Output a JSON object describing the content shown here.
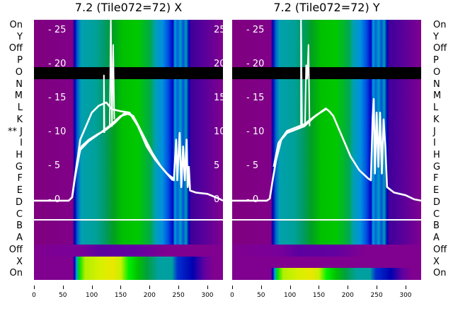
{
  "chart_data": {
    "type": "heatmap",
    "panels": [
      {
        "title": "7.2 (Tile072=72) X",
        "xlim": [
          0,
          327
        ],
        "xticks": [
          0,
          50,
          100,
          150,
          200,
          250,
          300
        ],
        "ylim_overlay": [
          -11.7,
          26.7
        ],
        "yticks_overlay": [
          0,
          5,
          10,
          15,
          20,
          25
        ],
        "row_kinds": [
          "main",
          "main",
          "main",
          "main",
          "black",
          "main",
          "main",
          "main",
          "main",
          "main",
          "main",
          "main",
          "main",
          "main",
          "main",
          "main",
          "main",
          "main",
          "main",
          "dim",
          "bright",
          "bright"
        ],
        "series": [
          {
            "name": "trace-1",
            "points": [
              [
                0,
                0
              ],
              [
                60,
                0
              ],
              [
                66,
                0.5
              ],
              [
                70,
                3
              ],
              [
                75,
                6
              ],
              [
                82,
                8
              ],
              [
                95,
                9
              ],
              [
                110,
                9.8
              ],
              [
                125,
                10.5
              ],
              [
                140,
                11.5
              ],
              [
                155,
                12.8
              ],
              [
                165,
                13
              ],
              [
                175,
                12
              ],
              [
                190,
                9.5
              ],
              [
                205,
                7
              ],
              [
                220,
                5
              ],
              [
                235,
                3.5
              ],
              [
                242,
                3
              ],
              [
                246,
                9
              ],
              [
                248,
                3
              ],
              [
                252,
                10
              ],
              [
                255,
                2
              ],
              [
                258,
                8
              ],
              [
                261,
                3
              ],
              [
                264,
                9
              ],
              [
                266,
                2
              ],
              [
                268,
                5
              ],
              [
                270,
                1.5
              ],
              [
                280,
                1.2
              ],
              [
                300,
                1
              ],
              [
                320,
                0.3
              ],
              [
                327,
                0
              ]
            ]
          },
          {
            "name": "trace-2",
            "points": [
              [
                66,
                0.5
              ],
              [
                72,
                4
              ],
              [
                80,
                9
              ],
              [
                90,
                11
              ],
              [
                100,
                13
              ],
              [
                112,
                14
              ],
              [
                125,
                14.5
              ],
              [
                135,
                13.5
              ],
              [
                150,
                13.2
              ],
              [
                165,
                13
              ],
              [
                180,
                11
              ],
              [
                195,
                8
              ],
              [
                210,
                6
              ],
              [
                225,
                4.5
              ],
              [
                240,
                3
              ]
            ]
          },
          {
            "name": "trace-3",
            "points": [
              [
                70,
                3
              ],
              [
                80,
                7.5
              ],
              [
                95,
                8.8
              ],
              [
                115,
                10
              ],
              [
                130,
                11
              ],
              [
                150,
                12.5
              ],
              [
                162,
                12.8
              ],
              [
                172,
                12.5
              ],
              [
                185,
                10
              ],
              [
                200,
                7.5
              ],
              [
                215,
                5.5
              ],
              [
                230,
                4
              ],
              [
                242,
                3.2
              ]
            ]
          },
          {
            "name": "spike-1",
            "points": [
              [
                121,
                10
              ],
              [
                121,
                18.5
              ],
              [
                122,
                10
              ]
            ]
          },
          {
            "name": "spike-2",
            "points": [
              [
                131,
                11
              ],
              [
                133,
                27
              ],
              [
                135,
                11
              ],
              [
                137,
                23
              ],
              [
                139,
                12
              ]
            ]
          }
        ]
      },
      {
        "title": "7.2 (Tile072=72) Y",
        "xlim": [
          0,
          327
        ],
        "xticks": [
          0,
          50,
          100,
          150,
          200,
          250,
          300
        ],
        "ylim_overlay": [
          -11.7,
          26.7
        ],
        "yticks_overlay": [
          0,
          5,
          10,
          15,
          20,
          25
        ],
        "row_kinds": [
          "main",
          "main",
          "main",
          "main",
          "black",
          "main",
          "main",
          "main",
          "main",
          "main",
          "main",
          "main",
          "main",
          "main",
          "main",
          "main",
          "main",
          "main",
          "main",
          "dim",
          "purple",
          "bright"
        ],
        "series": [
          {
            "name": "trace-1",
            "points": [
              [
                0,
                0
              ],
              [
                60,
                0
              ],
              [
                65,
                0.3
              ],
              [
                70,
                3
              ],
              [
                76,
                6
              ],
              [
                85,
                9
              ],
              [
                95,
                10
              ],
              [
                110,
                10.5
              ],
              [
                125,
                11
              ],
              [
                140,
                12.2
              ],
              [
                155,
                13.2
              ],
              [
                162,
                13.6
              ],
              [
                168,
                13.2
              ],
              [
                175,
                12.5
              ],
              [
                190,
                9.5
              ],
              [
                205,
                6.5
              ],
              [
                220,
                4.5
              ],
              [
                235,
                3.3
              ],
              [
                240,
                3
              ],
              [
                243,
                12
              ],
              [
                245,
                15
              ],
              [
                247,
                4
              ],
              [
                250,
                13
              ],
              [
                253,
                5
              ],
              [
                256,
                13
              ],
              [
                259,
                4
              ],
              [
                262,
                12
              ],
              [
                265,
                8
              ],
              [
                268,
                2
              ],
              [
                280,
                1.2
              ],
              [
                300,
                0.8
              ],
              [
                315,
                0.2
              ],
              [
                327,
                0
              ]
            ]
          },
          {
            "name": "trace-2",
            "points": [
              [
                72,
                5
              ],
              [
                80,
                8.5
              ],
              [
                95,
                10.3
              ],
              [
                110,
                10.8
              ],
              [
                125,
                11.3
              ],
              [
                145,
                12.6
              ],
              [
                162,
                13.5
              ]
            ]
          },
          {
            "name": "spike-1",
            "points": [
              [
                119,
                11
              ],
              [
                119,
                28
              ],
              [
                121,
                11
              ]
            ]
          },
          {
            "name": "spike-2",
            "points": [
              [
                126,
                11
              ],
              [
                128,
                20
              ],
              [
                130,
                18
              ],
              [
                132,
                23
              ],
              [
                134,
                11
              ]
            ]
          }
        ]
      }
    ],
    "row_labels_left": [
      "On",
      "Y",
      "Off",
      "P",
      "O",
      "N",
      "M",
      "L",
      "K",
      "** J",
      "I",
      "H",
      "G",
      "F",
      "E",
      "D",
      "C",
      "B",
      "A",
      "Off",
      "X",
      "On"
    ],
    "row_labels_right": [
      "On",
      "Y",
      "Off",
      "P",
      "O",
      "N",
      "M",
      "L",
      "K",
      "J",
      "I",
      "H",
      "G",
      "F",
      "E",
      "D",
      "C",
      "B",
      "A",
      "Off",
      "X",
      "On"
    ],
    "line_color": "#ffffff"
  }
}
